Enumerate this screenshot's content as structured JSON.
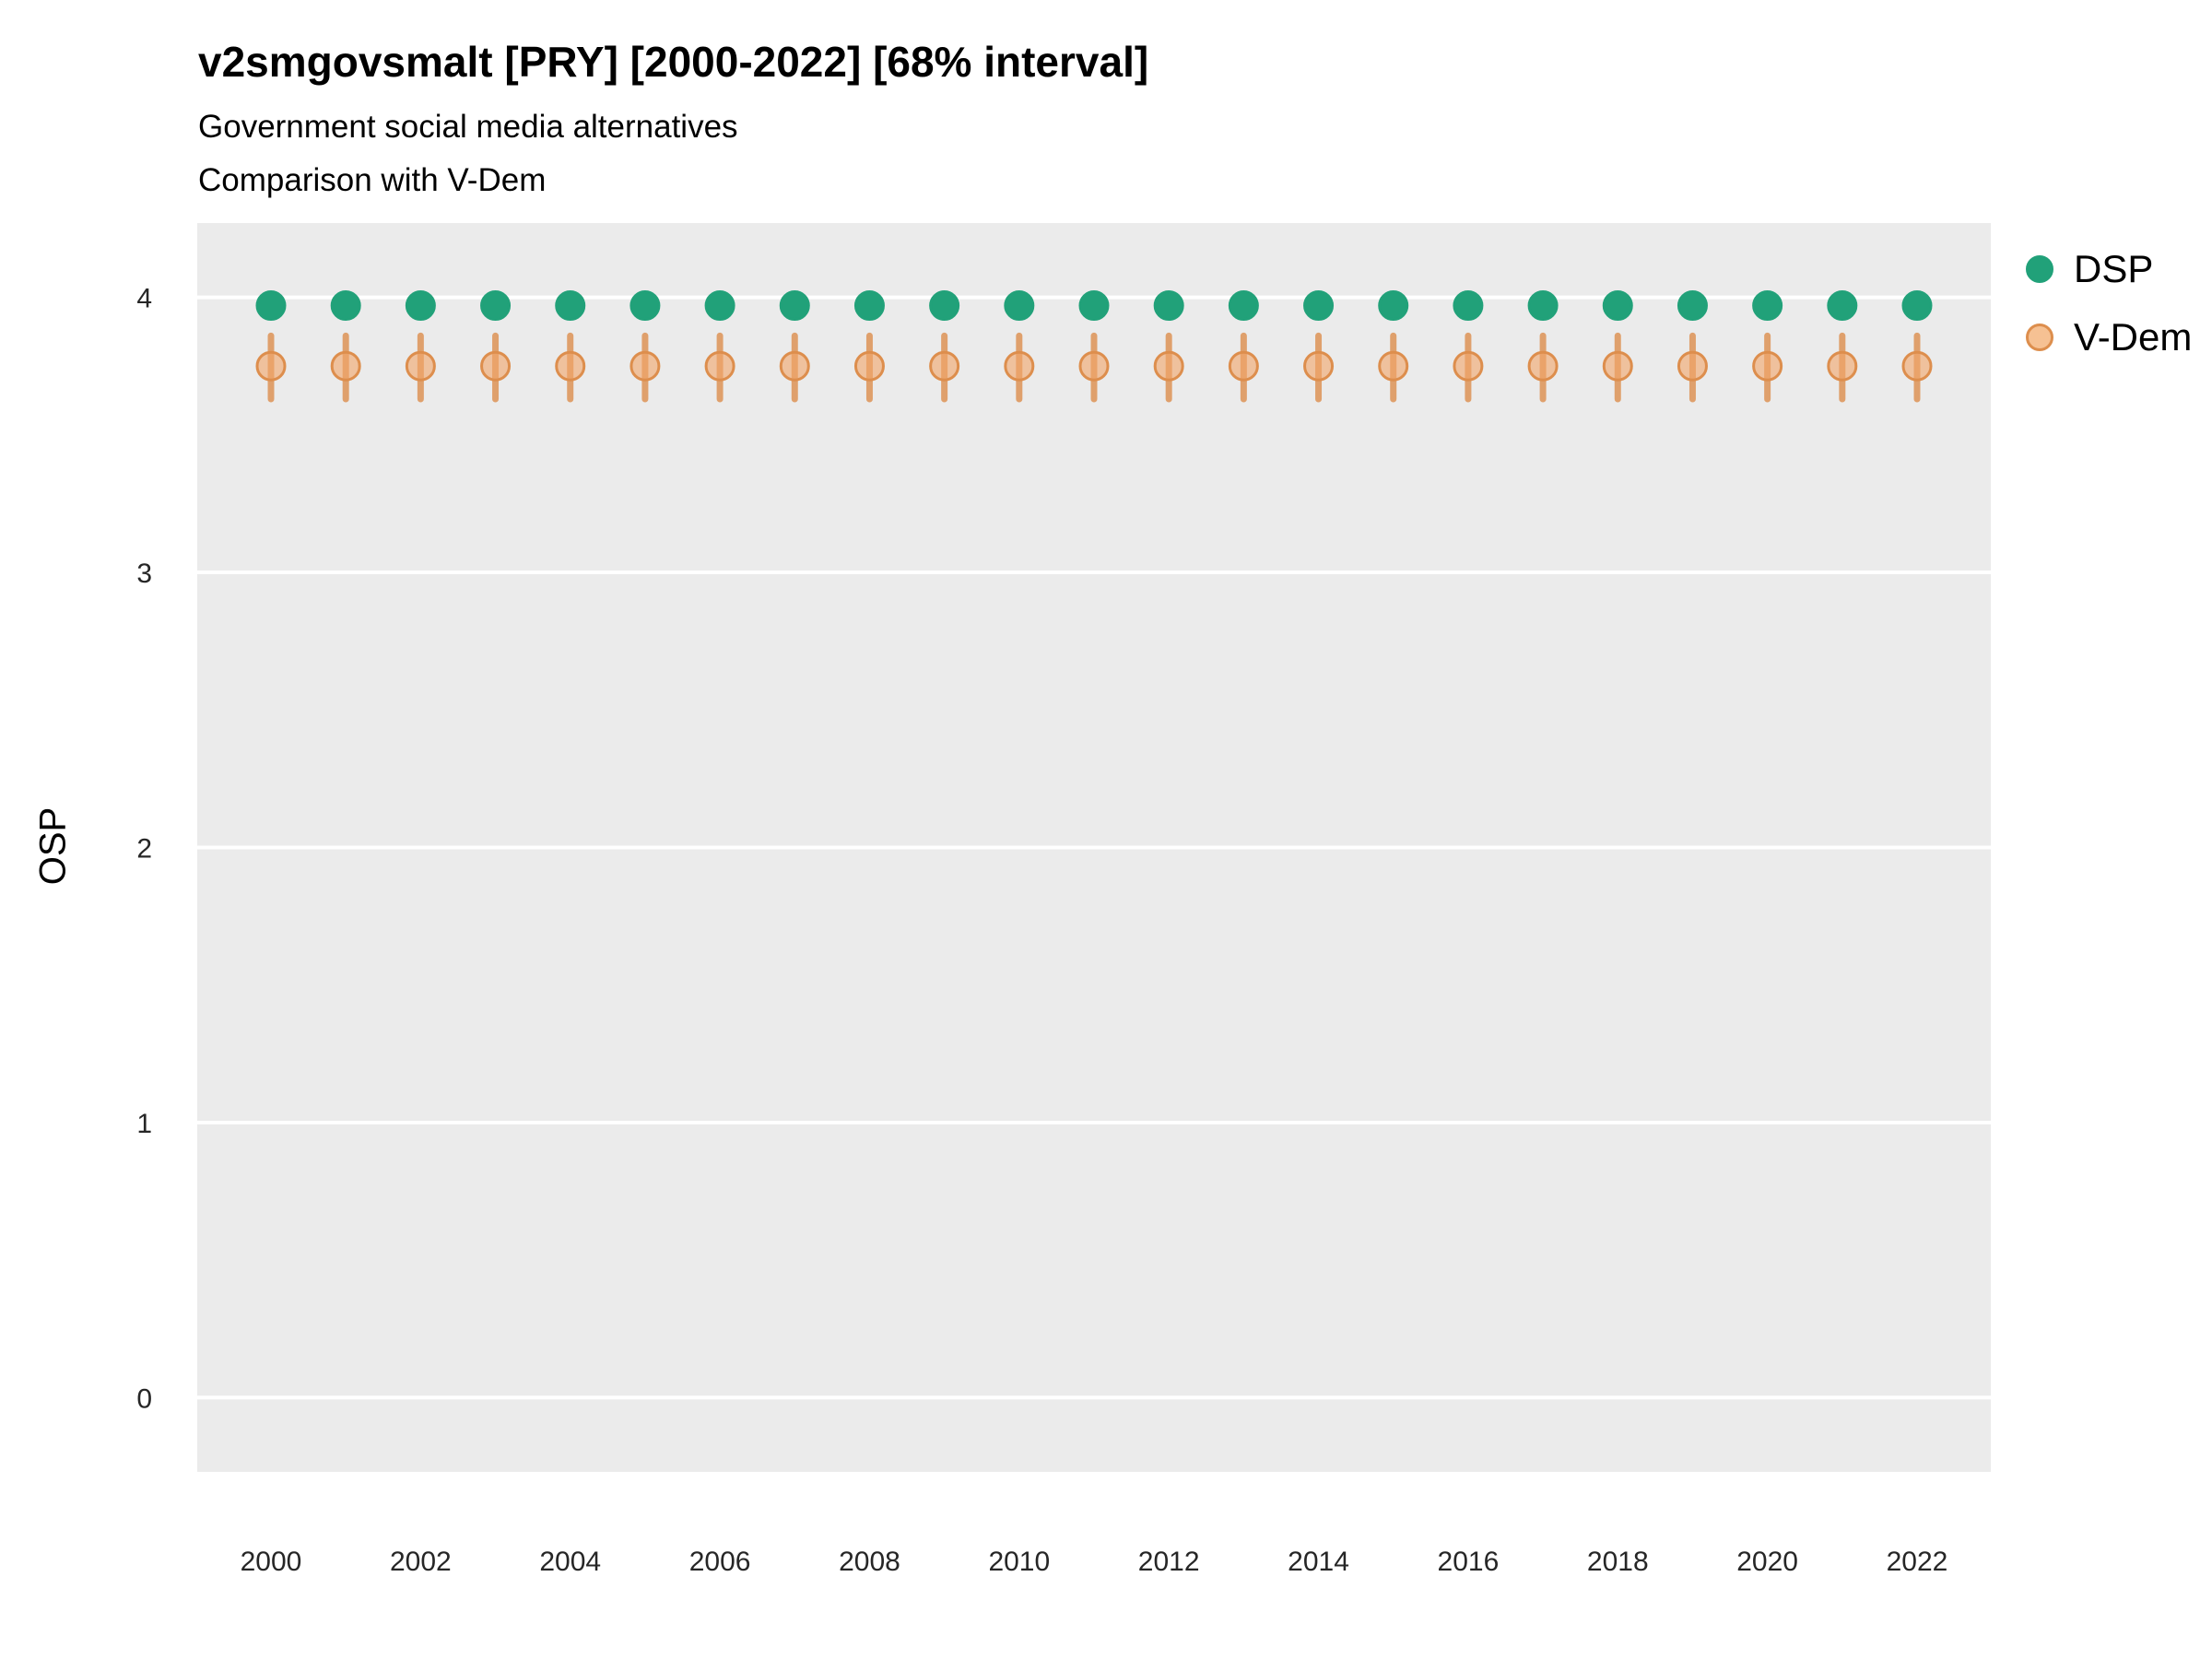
{
  "header": {
    "title": "v2smgovsmalt [PRY] [2000-2022] [68% interval]",
    "subtitle1": "Government social media alternatives",
    "subtitle2": "Comparison with V-Dem"
  },
  "axes": {
    "ylabel": "OSP",
    "yticks": [
      0,
      1,
      2,
      3,
      4
    ],
    "xticks": [
      2000,
      2002,
      2004,
      2006,
      2008,
      2010,
      2012,
      2014,
      2016,
      2018,
      2020,
      2022
    ]
  },
  "colors": {
    "panel_bg": "#ebebeb",
    "grid": "#ffffff",
    "tick_label": "#262626",
    "dsp_green": "#21a179",
    "vdem_orange_stroke": "#dd8e4d",
    "vdem_orange_fill": "#f2a569",
    "vdem_legend_fill": "#f6c193"
  },
  "chart_data": {
    "type": "pointrange",
    "title": "v2smgovsmalt [PRY] [2000-2022] [68% interval]",
    "xlabel": "",
    "ylabel": "OSP",
    "ylim": [
      -0.27,
      4.27
    ],
    "grid": "major-horizontal",
    "legend_position": "right",
    "x": [
      2000,
      2001,
      2002,
      2003,
      2004,
      2005,
      2006,
      2007,
      2008,
      2009,
      2010,
      2011,
      2012,
      2013,
      2014,
      2015,
      2016,
      2017,
      2018,
      2019,
      2020,
      2021,
      2022
    ],
    "series": [
      {
        "name": "DSP",
        "marker": "circle",
        "stroke": "#21a179",
        "fill": "#21a179",
        "legend_fill": "#21a179",
        "fill_opacity": 1,
        "line_opacity": 1,
        "values": [
          3.97,
          3.97,
          3.97,
          3.97,
          3.97,
          3.97,
          3.97,
          3.97,
          3.97,
          3.97,
          3.97,
          3.97,
          3.97,
          3.97,
          3.97,
          3.97,
          3.97,
          3.97,
          3.97,
          3.97,
          3.97,
          3.97,
          3.97
        ],
        "lo": [
          3.95,
          3.95,
          3.95,
          3.95,
          3.95,
          3.95,
          3.95,
          3.95,
          3.95,
          3.95,
          3.95,
          3.95,
          3.95,
          3.95,
          3.95,
          3.95,
          3.95,
          3.95,
          3.95,
          3.95,
          3.95,
          3.95,
          3.95
        ],
        "hi": [
          3.99,
          3.99,
          3.99,
          3.99,
          3.99,
          3.99,
          3.99,
          3.99,
          3.99,
          3.99,
          3.99,
          3.99,
          3.99,
          3.99,
          3.99,
          3.99,
          3.99,
          3.99,
          3.99,
          3.99,
          3.99,
          3.99,
          3.99
        ]
      },
      {
        "name": "V-Dem",
        "marker": "circle",
        "stroke": "#dd8e4d",
        "fill": "#f2a569",
        "legend_fill": "#f6c193",
        "fill_opacity": 0.6,
        "line_opacity": 0.8,
        "values": [
          3.75,
          3.75,
          3.75,
          3.75,
          3.75,
          3.75,
          3.75,
          3.75,
          3.75,
          3.75,
          3.75,
          3.75,
          3.75,
          3.75,
          3.75,
          3.75,
          3.75,
          3.75,
          3.75,
          3.75,
          3.75,
          3.75,
          3.75
        ],
        "lo": [
          3.63,
          3.63,
          3.63,
          3.63,
          3.63,
          3.63,
          3.63,
          3.63,
          3.63,
          3.63,
          3.63,
          3.63,
          3.63,
          3.63,
          3.63,
          3.63,
          3.63,
          3.63,
          3.63,
          3.63,
          3.63,
          3.63,
          3.63
        ],
        "hi": [
          3.86,
          3.86,
          3.86,
          3.86,
          3.86,
          3.86,
          3.86,
          3.86,
          3.86,
          3.86,
          3.86,
          3.86,
          3.86,
          3.86,
          3.86,
          3.86,
          3.86,
          3.86,
          3.86,
          3.86,
          3.86,
          3.86,
          3.86
        ]
      }
    ]
  }
}
